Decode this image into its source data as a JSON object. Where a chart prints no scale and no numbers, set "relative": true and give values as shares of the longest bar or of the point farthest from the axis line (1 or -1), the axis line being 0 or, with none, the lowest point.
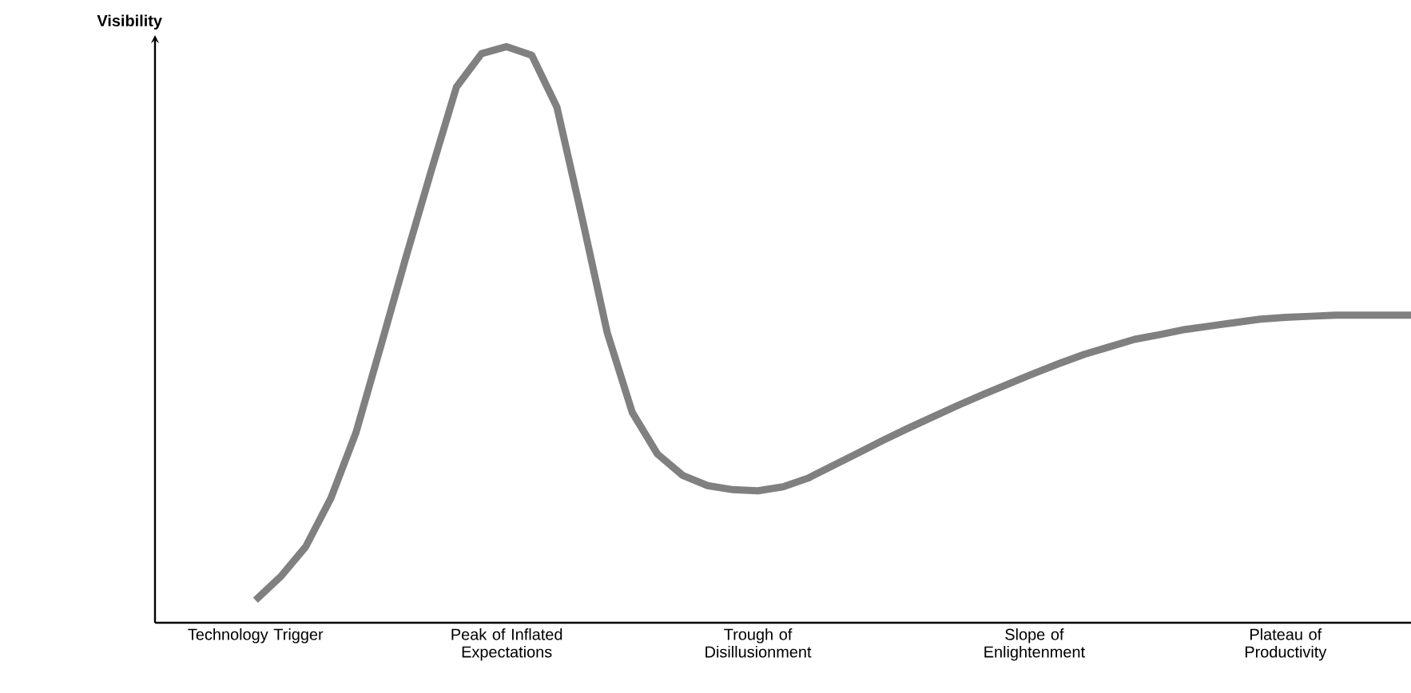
{
  "chart_data": {
    "type": "line",
    "relative": true,
    "ylabel": "Visibility",
    "color": "#808080",
    "categories": [
      null,
      null,
      null,
      null,
      "Technology Trigger",
      null,
      null,
      null,
      null,
      null,
      null,
      null,
      null,
      null,
      "Peak of Inflated Expectations",
      null,
      null,
      null,
      null,
      null,
      null,
      null,
      null,
      null,
      "Trough of Disillusionment",
      null,
      null,
      null,
      null,
      null,
      null,
      null,
      null,
      null,
      null,
      "Slope of Enlightenment",
      null,
      null,
      null,
      null,
      null,
      null,
      null,
      null,
      null,
      "Plateau of Productivity",
      null,
      null,
      null,
      null,
      null
    ],
    "values": [
      null,
      null,
      null,
      null,
      0.039,
      0.08,
      0.132,
      0.216,
      0.33,
      0.482,
      0.636,
      0.785,
      0.93,
      0.988,
      1.0,
      0.985,
      0.895,
      0.703,
      0.504,
      0.365,
      0.293,
      0.256,
      0.238,
      0.231,
      0.229,
      0.236,
      0.251,
      0.273,
      0.295,
      0.317,
      0.338,
      0.358,
      0.378,
      0.397,
      0.415,
      0.433,
      0.45,
      0.466,
      0.479,
      0.492,
      0.5,
      0.509,
      0.515,
      0.521,
      0.527,
      0.53,
      0.532,
      0.534,
      0.534,
      0.534,
      0.534
    ]
  }
}
